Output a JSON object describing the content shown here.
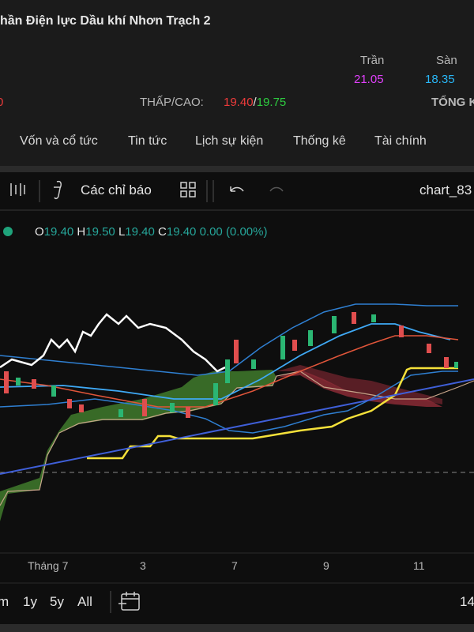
{
  "header": {
    "title": "hần Điện lực Dầu khí Nhơn Trạch 2",
    "change_fragment": "0",
    "ceiling": {
      "label": "Trần",
      "value": "21.05"
    },
    "floor": {
      "label": "Sàn",
      "value": "18.35"
    },
    "low_high": {
      "label": "THẤP/CAO:",
      "low": "19.40",
      "separator": "/",
      "high": "19.75"
    },
    "total_label": "TỔNG K"
  },
  "tabs": [
    "Vốn và cổ tức",
    "Tin tức",
    "Lịch sự kiện",
    "Thống kê",
    "Tài chính"
  ],
  "toolbar": {
    "indicators": "Các chỉ báo",
    "chart_name": "chart_83"
  },
  "legend": {
    "items": [
      {
        "label": "O",
        "value": "19.40"
      },
      {
        "label": "H",
        "value": "19.50"
      },
      {
        "label": "L",
        "value": "19.40"
      },
      {
        "label": "C",
        "value": "19.40"
      }
    ],
    "change": "0.00 (0.00%)"
  },
  "x_axis": [
    "Tháng 7",
    "3",
    "7",
    "9",
    "11"
  ],
  "ranges": [
    "m",
    "1y",
    "5y",
    "All"
  ],
  "bottom_right": "14"
}
